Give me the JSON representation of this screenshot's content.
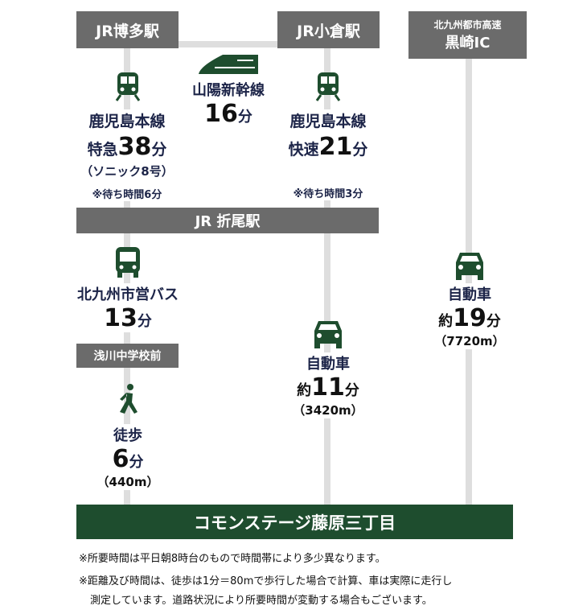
{
  "stations": {
    "hakata": "JR博多駅",
    "kokura": "JR小倉駅",
    "kurosaki_line1": "北九州都市高速",
    "kurosaki_line2": "黒崎IC",
    "orio": "JR 折尾駅",
    "bus_stop": "浅川中学校前",
    "destination": "コモンステージ藤原三丁目"
  },
  "routes": {
    "shinkansen": {
      "line": "山陽新幹線",
      "time": "16",
      "unit": "分"
    },
    "hakata_local": {
      "line": "鹿児島本線",
      "prefix": "特急",
      "time": "38",
      "unit": "分",
      "train": "（ソニック8号）",
      "wait": "※待ち時間6分"
    },
    "kokura_local": {
      "line": "鹿児島本線",
      "prefix": "快速",
      "time": "21",
      "unit": "分",
      "wait": "※待ち時間3分"
    },
    "bus": {
      "line": "北九州市営バス",
      "time": "13",
      "unit": "分"
    },
    "walk": {
      "mode": "徒歩",
      "time": "6",
      "unit": "分",
      "distance": "（440m）"
    },
    "car_orio": {
      "mode": "自動車",
      "prefix": "約",
      "time": "11",
      "unit": "分",
      "distance": "（3420m）"
    },
    "car_ic": {
      "mode": "自動車",
      "prefix": "約",
      "time": "19",
      "unit": "分",
      "distance": "（7720m）"
    }
  },
  "notes": [
    "※所要時間は平日朝8時台のもので時間帯により多少異なります。",
    "※距離及び時間は、徒歩は1分＝80mで歩行した場合で計算、車は実際に走行し",
    "測定しています。道路状況により所要時間が変動する場合もございます。"
  ],
  "colors": {
    "green": "#1e4d2e",
    "gray_box": "#6b6b6b",
    "line": "#dedede",
    "label": "#1c2448"
  }
}
